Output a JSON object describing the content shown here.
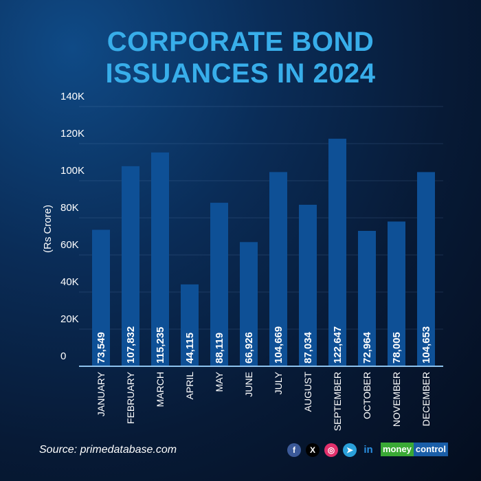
{
  "title_lines": [
    "CORPORATE BOND",
    "ISSUANCES IN 2024"
  ],
  "source": "Source: primedatabase.com",
  "brand": {
    "part1": "money",
    "part2": "control",
    "color1": "#3aa935",
    "color2": "#1a5ea8"
  },
  "social_icons": [
    "facebook-icon",
    "x-icon",
    "instagram-icon",
    "telegram-icon",
    "linkedin-icon"
  ],
  "social_glyphs": [
    "f",
    "X",
    "◎",
    "➤",
    "in"
  ],
  "colors": {
    "title": "#38aeea",
    "bar": "#0e5096",
    "axis": "#8fc4ee"
  },
  "chart_data": {
    "type": "bar",
    "title": "CORPORATE BOND ISSUANCES IN 2024",
    "ylabel": "(Rs Crore)",
    "xlabel": "",
    "ylim": [
      0,
      140000
    ],
    "yticks": [
      0,
      20000,
      40000,
      60000,
      80000,
      100000,
      120000,
      140000
    ],
    "ytick_labels": [
      "0",
      "20K",
      "40K",
      "60K",
      "80K",
      "100K",
      "120K",
      "140K"
    ],
    "grid": true,
    "categories": [
      "JANUARY",
      "FEBRUARY",
      "MARCH",
      "APRIL",
      "MAY",
      "JUNE",
      "JULY",
      "AUGUST",
      "SEPTEMBER",
      "OCTOBER",
      "NOVEMBER",
      "DECEMBER"
    ],
    "values": [
      73549,
      107832,
      115235,
      44115,
      88119,
      66926,
      104669,
      87034,
      122647,
      72964,
      78005,
      104653
    ],
    "data_labels": [
      "73,549",
      "107,832",
      "115,235",
      "44,115",
      "88,119",
      "66,926",
      "104,669",
      "87,034",
      "122,647",
      "72,964",
      "78,005",
      "104,653"
    ]
  }
}
